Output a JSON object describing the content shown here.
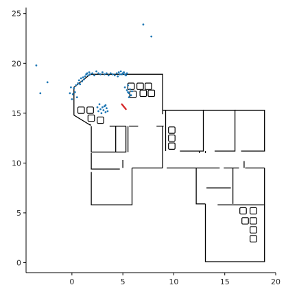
{
  "chart_data": {
    "type": "scatter",
    "title": "",
    "xlabel": "",
    "ylabel": "",
    "xlim": [
      -4.5,
      20
    ],
    "ylim": [
      -1.0,
      25.6
    ],
    "x_ticks": [
      0,
      5,
      10,
      15,
      20
    ],
    "y_ticks": [
      0,
      5,
      10,
      15,
      20,
      25
    ],
    "grid": false,
    "spines": {
      "left": true,
      "bottom": true,
      "top": false,
      "right": false
    },
    "colors": {
      "points": "#1f77b4",
      "walls": "#000000",
      "highlight": "#d62728"
    },
    "series": [
      {
        "kind": "points",
        "values": [
          [
            -3.5,
            19.8
          ],
          [
            -3.1,
            17.0
          ],
          [
            -2.4,
            18.1
          ],
          [
            7.0,
            23.9
          ],
          [
            7.8,
            22.7
          ],
          [
            -0.2,
            17.0
          ],
          [
            -0.1,
            17.6
          ],
          [
            0.0,
            16.4
          ],
          [
            0.1,
            16.9
          ],
          [
            0.2,
            17.5
          ],
          [
            0.3,
            17.1
          ],
          [
            0.4,
            17.8
          ],
          [
            0.5,
            16.6
          ],
          [
            0.6,
            18.0
          ],
          [
            0.7,
            18.3
          ],
          [
            0.8,
            17.9
          ],
          [
            0.9,
            18.5
          ],
          [
            1.0,
            18.2
          ],
          [
            1.1,
            18.6
          ],
          [
            1.2,
            18.4
          ],
          [
            1.3,
            18.7
          ],
          [
            1.4,
            18.9
          ],
          [
            1.5,
            19.0
          ],
          [
            1.6,
            18.8
          ],
          [
            1.7,
            19.1
          ],
          [
            1.8,
            18.9
          ],
          [
            2.0,
            19.0
          ],
          [
            2.2,
            18.8
          ],
          [
            2.4,
            19.2
          ],
          [
            2.6,
            19.0
          ],
          [
            2.8,
            18.9
          ],
          [
            3.0,
            19.1
          ],
          [
            3.2,
            18.9
          ],
          [
            3.4,
            19.0
          ],
          [
            3.6,
            18.8
          ],
          [
            3.8,
            19.0
          ],
          [
            4.0,
            18.9
          ],
          [
            4.2,
            18.8
          ],
          [
            4.4,
            19.0
          ],
          [
            4.5,
            18.7
          ],
          [
            4.6,
            19.1
          ],
          [
            4.7,
            18.9
          ],
          [
            4.8,
            19.2
          ],
          [
            4.9,
            18.9
          ],
          [
            5.0,
            19.0
          ],
          [
            5.1,
            19.1
          ],
          [
            5.2,
            18.9
          ],
          [
            5.3,
            18.8
          ],
          [
            5.4,
            19.0
          ],
          [
            5.2,
            17.6
          ],
          [
            5.4,
            17.3
          ],
          [
            5.5,
            17.8
          ],
          [
            5.6,
            17.0
          ],
          [
            5.7,
            17.4
          ],
          [
            5.8,
            16.8
          ],
          [
            5.6,
            16.6
          ],
          [
            5.9,
            17.2
          ],
          [
            5.5,
            17.1
          ],
          [
            2.5,
            15.6
          ],
          [
            2.6,
            15.2
          ],
          [
            2.7,
            15.9
          ],
          [
            2.8,
            15.4
          ],
          [
            2.9,
            15.0
          ],
          [
            3.0,
            15.6
          ],
          [
            3.1,
            15.3
          ],
          [
            3.2,
            15.7
          ],
          [
            3.3,
            15.1
          ],
          [
            3.4,
            15.5
          ],
          [
            3.5,
            15.2
          ],
          [
            3.3,
            15.8
          ]
        ]
      },
      {
        "kind": "path",
        "name": "walls",
        "paths": [
          [
            [
              0.2,
              14.8
            ],
            [
              0.2,
              17.6
            ],
            [
              1.8,
              18.9
            ],
            [
              8.9,
              18.9
            ],
            [
              8.9,
              14.9
            ]
          ],
          [
            [
              0.2,
              14.8
            ],
            [
              1.8,
              13.8
            ],
            [
              1.8,
              13.9
            ]
          ],
          [
            [
              1.9,
              13.7
            ],
            [
              1.9,
              11.1
            ],
            [
              5.3,
              11.1
            ],
            [
              5.3,
              13.7
            ]
          ],
          [
            [
              3.7,
              13.7
            ],
            [
              5.3,
              13.7
            ]
          ],
          [
            [
              4.3,
              13.7
            ],
            [
              4.3,
              11.1
            ]
          ],
          [
            [
              5.5,
              13.7
            ],
            [
              5.5,
              11.1
            ]
          ],
          [
            [
              5.6,
              13.7
            ],
            [
              6.5,
              13.7
            ]
          ],
          [
            [
              8.3,
              13.7
            ],
            [
              9.0,
              13.7
            ]
          ],
          [
            [
              8.9,
              13.7
            ],
            [
              8.9,
              9.5
            ]
          ],
          [
            [
              1.9,
              11.0
            ],
            [
              1.9,
              9.4
            ],
            [
              4.7,
              9.4
            ]
          ],
          [
            [
              5.0,
              10.3
            ],
            [
              5.0,
              9.5
            ]
          ],
          [
            [
              1.9,
              9.1
            ],
            [
              1.9,
              5.8
            ],
            [
              5.9,
              5.8
            ],
            [
              5.9,
              9.5
            ]
          ],
          [
            [
              5.9,
              9.5
            ],
            [
              8.9,
              9.5
            ]
          ],
          [
            [
              9.3,
              9.5
            ],
            [
              14.5,
              9.5
            ]
          ],
          [
            [
              14.9,
              9.5
            ],
            [
              16.4,
              9.5
            ]
          ],
          [
            [
              17.0,
              9.5
            ],
            [
              18.9,
              9.5
            ]
          ],
          [
            [
              8.9,
              15.3
            ],
            [
              12.9,
              15.3
            ],
            [
              12.9,
              11.2
            ],
            [
              10.6,
              11.2
            ]
          ],
          [
            [
              9.2,
              15.3
            ],
            [
              9.2,
              11.2
            ]
          ],
          [
            [
              12.9,
              15.3
            ],
            [
              16.0,
              15.3
            ],
            [
              16.0,
              11.2
            ],
            [
              14.0,
              11.2
            ]
          ],
          [
            [
              16.0,
              15.3
            ],
            [
              18.9,
              15.3
            ],
            [
              18.9,
              11.2
            ],
            [
              16.6,
              11.2
            ]
          ],
          [
            [
              12.5,
              11.2
            ],
            [
              12.5,
              11.0
            ]
          ],
          [
            [
              13.1,
              11.2
            ],
            [
              13.1,
              11.0
            ]
          ],
          [
            [
              12.2,
              9.5
            ],
            [
              12.2,
              5.9
            ],
            [
              13.1,
              5.9
            ]
          ],
          [
            [
              13.1,
              5.9
            ],
            [
              13.1,
              0.1
            ],
            [
              18.9,
              0.1
            ],
            [
              18.9,
              9.5
            ]
          ],
          [
            [
              13.2,
              7.5
            ],
            [
              15.6,
              7.5
            ]
          ],
          [
            [
              15.8,
              9.5
            ],
            [
              15.8,
              5.9
            ]
          ],
          [
            [
              14.3,
              5.8
            ],
            [
              18.9,
              5.8
            ]
          ],
          [
            [
              16.9,
              10.2
            ],
            [
              16.9,
              9.5
            ]
          ]
        ]
      },
      {
        "kind": "squares",
        "name": "obstacles",
        "half_size": 0.32,
        "centers": [
          [
            5.8,
            17.7
          ],
          [
            6.7,
            17.7
          ],
          [
            7.5,
            17.7
          ],
          [
            6.0,
            16.9
          ],
          [
            7.0,
            17.0
          ],
          [
            7.8,
            17.0
          ],
          [
            0.9,
            15.3
          ],
          [
            1.8,
            15.3
          ],
          [
            1.9,
            14.5
          ],
          [
            2.8,
            14.3
          ],
          [
            9.8,
            13.3
          ],
          [
            9.8,
            12.5
          ],
          [
            9.8,
            11.7
          ],
          [
            16.8,
            5.2
          ],
          [
            17.8,
            5.2
          ],
          [
            17.0,
            4.2
          ],
          [
            17.8,
            4.2
          ],
          [
            17.8,
            3.3
          ],
          [
            17.8,
            2.4
          ]
        ]
      },
      {
        "kind": "segment",
        "name": "highlight",
        "values": [
          [
            4.9,
            15.9
          ],
          [
            5.3,
            15.4
          ]
        ]
      }
    ]
  }
}
